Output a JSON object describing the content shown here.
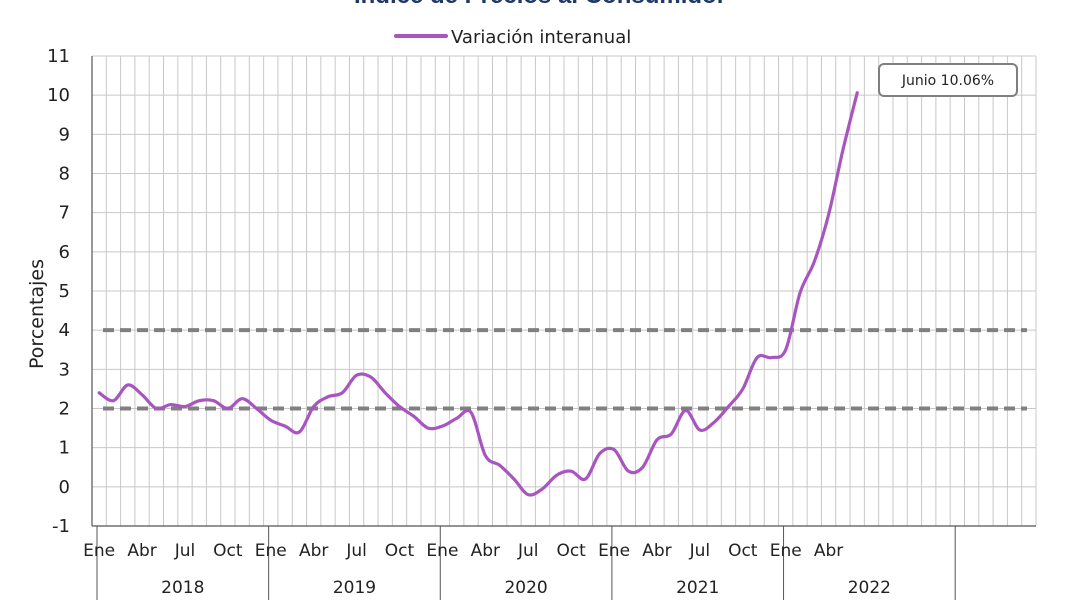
{
  "chart_data": {
    "type": "line",
    "title": "Índice de Precios al Consumidor",
    "ylabel": "Porcentajes",
    "ylim": [
      -1,
      11
    ],
    "yticks": [
      -1,
      0,
      1,
      2,
      3,
      4,
      5,
      6,
      7,
      8,
      9,
      10,
      11
    ],
    "negative_tick_color": "#cc0000",
    "grid": true,
    "legend_position": "top-center",
    "month_tick_labels": [
      "Ene",
      "Abr",
      "Jul",
      "Oct"
    ],
    "years": [
      "2018",
      "2019",
      "2020",
      "2021",
      "2022"
    ],
    "x": [
      "2018-01",
      "2018-02",
      "2018-03",
      "2018-04",
      "2018-05",
      "2018-06",
      "2018-07",
      "2018-08",
      "2018-09",
      "2018-10",
      "2018-11",
      "2018-12",
      "2019-01",
      "2019-02",
      "2019-03",
      "2019-04",
      "2019-05",
      "2019-06",
      "2019-07",
      "2019-08",
      "2019-09",
      "2019-10",
      "2019-11",
      "2019-12",
      "2020-01",
      "2020-02",
      "2020-03",
      "2020-04",
      "2020-05",
      "2020-06",
      "2020-07",
      "2020-08",
      "2020-09",
      "2020-10",
      "2020-11",
      "2020-12",
      "2021-01",
      "2021-02",
      "2021-03",
      "2021-04",
      "2021-05",
      "2021-06",
      "2021-07",
      "2021-08",
      "2021-09",
      "2021-10",
      "2021-11",
      "2021-12",
      "2022-01",
      "2022-02",
      "2022-03",
      "2022-04",
      "2022-05",
      "2022-06"
    ],
    "series": [
      {
        "name": "Variación interanual",
        "color": "#a855c0",
        "values": [
          2.4,
          2.2,
          2.6,
          2.35,
          2.0,
          2.1,
          2.05,
          2.2,
          2.2,
          2.0,
          2.25,
          2.0,
          1.7,
          1.55,
          1.4,
          2.05,
          2.3,
          2.4,
          2.85,
          2.8,
          2.4,
          2.05,
          1.8,
          1.5,
          1.55,
          1.75,
          1.9,
          0.8,
          0.55,
          0.2,
          -0.2,
          -0.05,
          0.3,
          0.4,
          0.2,
          0.85,
          0.95,
          0.4,
          0.5,
          1.2,
          1.35,
          1.95,
          1.45,
          1.65,
          2.05,
          2.5,
          3.3,
          3.3,
          3.5,
          4.95,
          5.75,
          6.95,
          8.6,
          10.06
        ]
      }
    ],
    "reference_lines": [
      {
        "y": 2,
        "color": "#808080",
        "style": "dashed"
      },
      {
        "y": 4,
        "color": "#808080",
        "style": "dashed"
      }
    ],
    "annotation": {
      "text": "Junio 10.06%"
    }
  }
}
